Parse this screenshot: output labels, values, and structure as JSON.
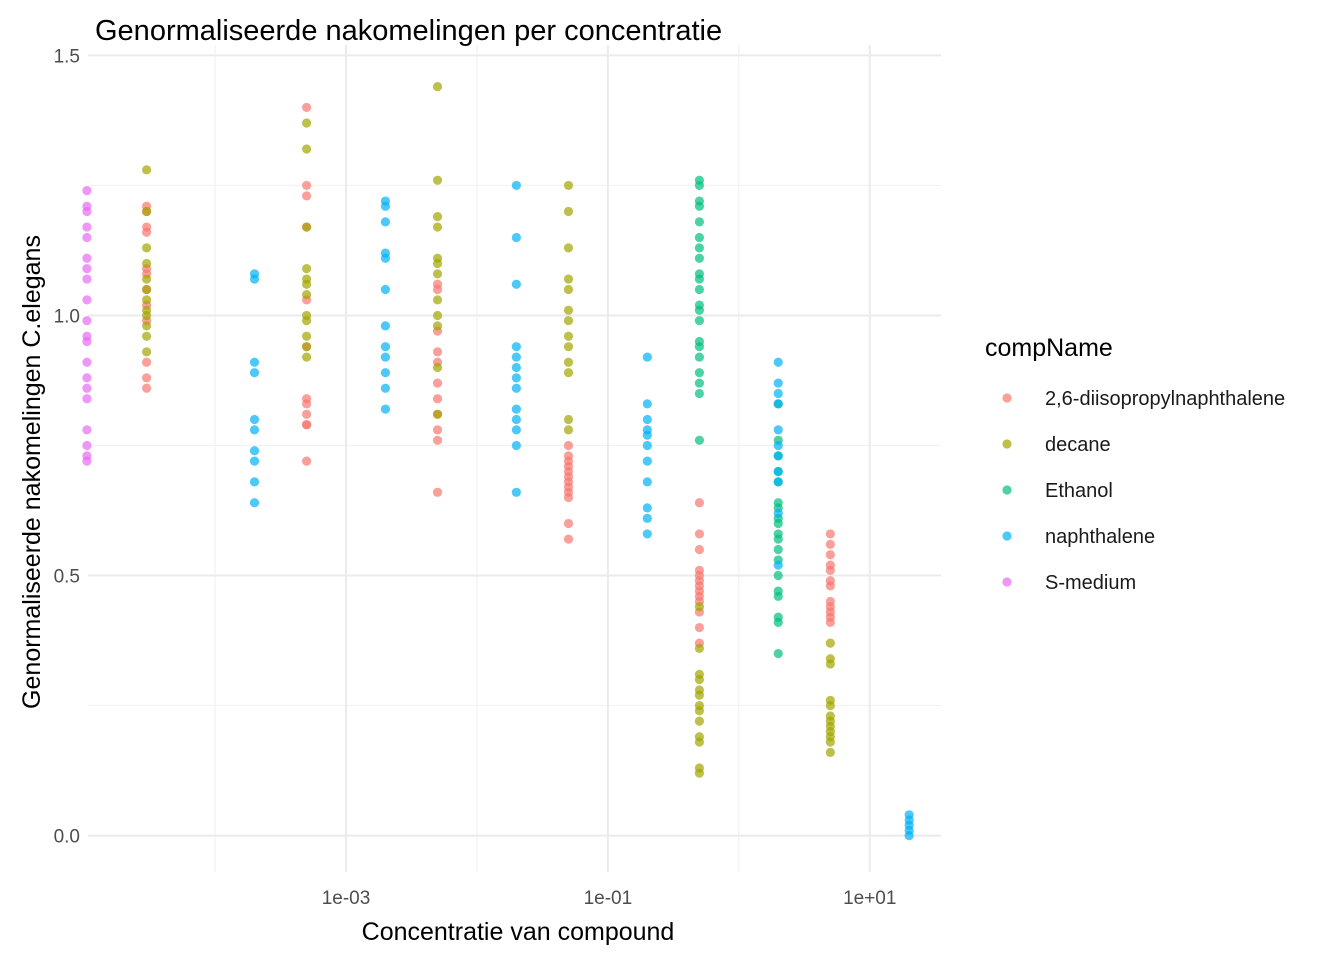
{
  "chart_data": {
    "type": "scatter",
    "title": "Genormaliseerde nakomelingen per concentratie",
    "xlabel": "Concentratie van compound",
    "ylabel": "Genormaliseerde nakomelingen C.elegans",
    "x_scale": "log10",
    "xlim": [
      1.07e-05,
      35
    ],
    "ylim": [
      -0.07,
      1.52
    ],
    "x_ticks": [
      {
        "value": 0.001,
        "label": "1e-03"
      },
      {
        "value": 0.1,
        "label": "1e-01"
      },
      {
        "value": 10,
        "label": "1e+01"
      }
    ],
    "y_ticks": [
      {
        "value": 0.0,
        "label": "0.0"
      },
      {
        "value": 0.5,
        "label": "0.5"
      },
      {
        "value": 1.0,
        "label": "1.0"
      },
      {
        "value": 1.5,
        "label": "1.5"
      }
    ],
    "grid": true,
    "legend": {
      "title": "compName",
      "position": "right"
    },
    "series": [
      {
        "name": "2,6-diisopropylnaphthalene",
        "color": "#F8766D",
        "groups": [
          {
            "x": 3e-05,
            "y": [
              1.21,
              1.2,
              1.17,
              1.16,
              1.09,
              1.08,
              1.02,
              0.99,
              0.91,
              0.88,
              0.86,
              1.05
            ]
          },
          {
            "x": 0.0005,
            "y": [
              1.4,
              1.25,
              1.23,
              1.17,
              0.84,
              0.83,
              0.81,
              0.79,
              0.79,
              0.72,
              0.94,
              1.03
            ]
          },
          {
            "x": 0.005,
            "y": [
              1.06,
              1.05,
              0.93,
              0.91,
              0.87,
              0.84,
              0.81,
              0.78,
              0.76,
              0.66,
              0.97
            ]
          },
          {
            "x": 0.05,
            "y": [
              0.75,
              0.73,
              0.71,
              0.69,
              0.68,
              0.67,
              0.66,
              0.65,
              0.6,
              0.57,
              0.7,
              0.72
            ]
          },
          {
            "x": 0.5,
            "y": [
              0.64,
              0.58,
              0.55,
              0.51,
              0.5,
              0.49,
              0.48,
              0.47,
              0.46,
              0.45,
              0.43,
              0.4,
              0.37
            ]
          },
          {
            "x": 5,
            "y": [
              0.58,
              0.56,
              0.54,
              0.52,
              0.51,
              0.49,
              0.48,
              0.45,
              0.44,
              0.43,
              0.42,
              0.41
            ]
          }
        ]
      },
      {
        "name": "decane",
        "color": "#A3A500",
        "groups": [
          {
            "x": 3e-05,
            "y": [
              1.28,
              1.2,
              1.13,
              1.1,
              1.07,
              1.05,
              1.03,
              1.01,
              1.0,
              0.98,
              0.96,
              0.93
            ]
          },
          {
            "x": 0.0005,
            "y": [
              1.37,
              1.32,
              1.17,
              1.09,
              1.07,
              1.06,
              1.04,
              1.0,
              0.99,
              0.96,
              0.94,
              0.92
            ]
          },
          {
            "x": 0.005,
            "y": [
              1.44,
              1.26,
              1.19,
              1.17,
              1.11,
              1.1,
              1.08,
              1.03,
              1.0,
              0.98,
              0.9,
              0.81
            ]
          },
          {
            "x": 0.05,
            "y": [
              1.25,
              1.2,
              1.13,
              1.07,
              1.05,
              1.01,
              0.99,
              0.96,
              0.94,
              0.91,
              0.89,
              0.8,
              0.78
            ]
          },
          {
            "x": 0.5,
            "y": [
              0.44,
              0.36,
              0.31,
              0.3,
              0.28,
              0.27,
              0.25,
              0.24,
              0.22,
              0.19,
              0.18,
              0.13,
              0.12
            ]
          },
          {
            "x": 5,
            "y": [
              0.37,
              0.34,
              0.33,
              0.26,
              0.25,
              0.23,
              0.22,
              0.21,
              0.2,
              0.19,
              0.18,
              0.16
            ]
          }
        ]
      },
      {
        "name": "Ethanol",
        "color": "#00BF7D",
        "groups": [
          {
            "x": 0.5,
            "y": [
              1.26,
              1.25,
              1.22,
              1.21,
              1.18,
              1.15,
              1.13,
              1.11,
              1.08,
              1.07,
              1.05,
              1.02,
              1.01,
              0.99,
              0.95,
              0.94,
              0.92,
              0.89,
              0.87,
              0.85,
              0.76
            ]
          },
          {
            "x": 2,
            "y": [
              0.83,
              0.76,
              0.73,
              0.7,
              0.68,
              0.64,
              0.63,
              0.61,
              0.6,
              0.58,
              0.57,
              0.55,
              0.53,
              0.5,
              0.47,
              0.46,
              0.42,
              0.41,
              0.35
            ]
          }
        ]
      },
      {
        "name": "naphthalene",
        "color": "#00B0F6",
        "groups": [
          {
            "x": 0.0002,
            "y": [
              1.08,
              1.07,
              0.91,
              0.89,
              0.8,
              0.78,
              0.74,
              0.72,
              0.68,
              0.64
            ]
          },
          {
            "x": 0.002,
            "y": [
              1.22,
              1.21,
              1.18,
              1.12,
              1.11,
              1.05,
              0.98,
              0.94,
              0.92,
              0.89,
              0.86,
              0.82
            ]
          },
          {
            "x": 0.02,
            "y": [
              1.25,
              1.15,
              1.06,
              0.94,
              0.92,
              0.9,
              0.88,
              0.86,
              0.82,
              0.8,
              0.78,
              0.75,
              0.66
            ]
          },
          {
            "x": 0.2,
            "y": [
              0.92,
              0.83,
              0.8,
              0.78,
              0.77,
              0.75,
              0.72,
              0.68,
              0.63,
              0.61,
              0.58
            ]
          },
          {
            "x": 2,
            "y": [
              0.91,
              0.87,
              0.85,
              0.83,
              0.78,
              0.75,
              0.73,
              0.7,
              0.68,
              0.62,
              0.52
            ]
          },
          {
            "x": 20,
            "y": [
              0.04,
              0.03,
              0.02,
              0.01,
              0.0
            ]
          }
        ]
      },
      {
        "name": "S-medium",
        "color": "#E76BF3",
        "groups": [
          {
            "x": 1.05e-05,
            "y": [
              1.24,
              1.21,
              1.2,
              1.17,
              1.15,
              1.11,
              1.09,
              1.07,
              1.03,
              0.99,
              0.96,
              0.95,
              0.91,
              0.88,
              0.86,
              0.84,
              0.78,
              0.75,
              0.73,
              0.72
            ]
          }
        ]
      }
    ]
  }
}
